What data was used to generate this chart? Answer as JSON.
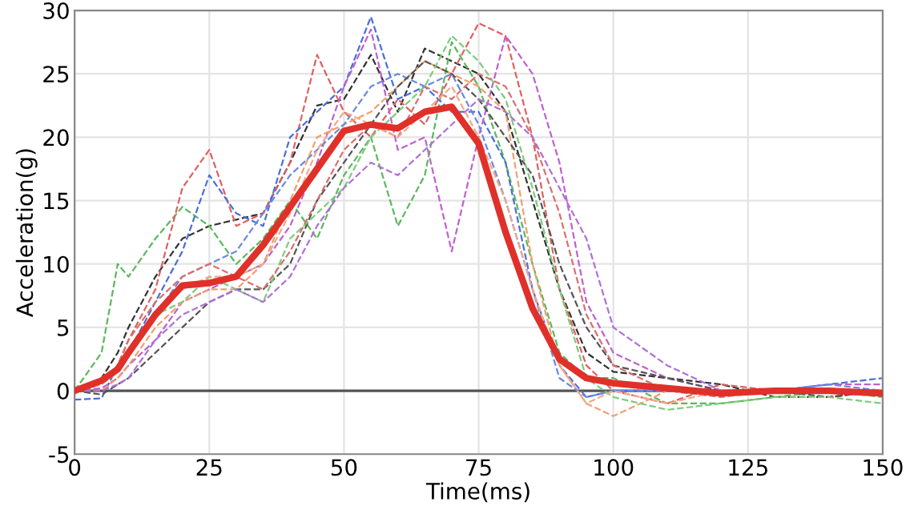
{
  "chart_data": {
    "type": "line",
    "xlabel": "Time(ms)",
    "ylabel": "Acceleration(g)",
    "x": [
      0,
      5,
      8,
      10,
      15,
      20,
      25,
      30,
      35,
      40,
      45,
      50,
      55,
      60,
      65,
      70,
      75,
      80,
      85,
      90,
      95,
      100,
      110,
      120,
      130,
      140,
      150
    ],
    "xlim": [
      0,
      150
    ],
    "xticks": [
      0,
      25,
      50,
      75,
      100,
      125,
      150
    ],
    "ylim": [
      -5,
      30
    ],
    "yticks": [
      -5,
      0,
      5,
      10,
      15,
      20,
      25,
      30
    ],
    "grid": true,
    "marker": "none",
    "ref_lines": [
      {
        "axis": "y",
        "value": 0,
        "color": "#555555",
        "line_style": "solid"
      }
    ],
    "series": [
      {
        "color": "#333333",
        "line_style": "dashed",
        "values": [
          0,
          1,
          3,
          5,
          9,
          12,
          13,
          13.5,
          14,
          18,
          22.5,
          23,
          26.5,
          22,
          27,
          26,
          25,
          22,
          15,
          8,
          3,
          1.5,
          1,
          0.5,
          -0.5,
          -0.5,
          0
        ]
      },
      {
        "color": "#5cb85c",
        "line_style": "dashed",
        "values": [
          0,
          3,
          10,
          9,
          12,
          14.5,
          13,
          10,
          12,
          15,
          12,
          17,
          20,
          13,
          17,
          27.5,
          24,
          18,
          10,
          3,
          1,
          1,
          -1,
          -1,
          -0.5,
          0,
          -0.5
        ]
      },
      {
        "color": "#e06060",
        "line_style": "dashed",
        "values": [
          0,
          0.5,
          2,
          4,
          8,
          16,
          19,
          13,
          14,
          18,
          26.5,
          22,
          20,
          23,
          21,
          25,
          29,
          28,
          20,
          8,
          2,
          0,
          -1,
          0.5,
          0,
          0,
          0
        ]
      },
      {
        "color": "#4a6fd8",
        "line_style": "dashed",
        "values": [
          -0.7,
          -0.6,
          2,
          3,
          7,
          11,
          17,
          14,
          13,
          20,
          22,
          24,
          29.5,
          23,
          24,
          22,
          22,
          18,
          8,
          2,
          -0.5,
          0,
          0,
          0,
          0,
          0.5,
          1
        ]
      },
      {
        "color": "#c060d0",
        "line_style": "dashed",
        "values": [
          0,
          0.2,
          1,
          2,
          4,
          7,
          8,
          9,
          10,
          13,
          18,
          24,
          28.5,
          19,
          20,
          11,
          20,
          28,
          25,
          18,
          7,
          3,
          1,
          0,
          0,
          0.5,
          0.5
        ]
      },
      {
        "color": "#f0a070",
        "line_style": "dashed",
        "values": [
          0,
          0,
          1,
          2,
          5,
          7,
          8,
          8,
          10,
          15,
          20,
          21,
          22,
          24,
          26,
          25,
          24,
          22,
          10,
          2,
          -1,
          -2,
          0,
          0,
          0,
          0,
          0
        ]
      },
      {
        "color": "#6a8ae0",
        "line_style": "dashed",
        "values": [
          0,
          0.5,
          1.5,
          3,
          6,
          9,
          10,
          11,
          14,
          17,
          19,
          21,
          24,
          25,
          24,
          25,
          21,
          15,
          8,
          1,
          -0.5,
          0,
          0,
          0,
          0,
          0.5,
          0
        ]
      },
      {
        "color": "#555555",
        "line_style": "dashed",
        "values": [
          0,
          -0.3,
          0.5,
          1,
          3,
          5,
          7,
          8,
          8,
          10,
          15,
          18,
          21,
          24,
          26,
          25,
          23,
          20,
          17,
          10,
          5,
          2,
          1,
          0,
          0,
          -0.5,
          0
        ]
      },
      {
        "color": "#7ccc7c",
        "line_style": "dashed",
        "values": [
          0,
          0.5,
          1.5,
          3,
          6,
          7,
          9,
          8,
          7,
          12,
          14,
          16,
          20,
          22,
          24,
          28,
          26,
          23,
          16,
          8,
          1,
          -0.5,
          -1.5,
          -1,
          -0.5,
          -0.5,
          -1
        ]
      },
      {
        "color": "#d87070",
        "line_style": "dashed",
        "values": [
          0,
          0.5,
          2,
          4,
          7,
          9,
          10,
          9,
          8,
          11,
          15,
          19,
          21,
          20,
          24,
          23,
          25,
          24,
          20,
          14,
          6,
          2,
          0,
          -0.5,
          0,
          0,
          0
        ]
      },
      {
        "color": "#b070d8",
        "line_style": "dashed",
        "values": [
          0,
          0,
          0.5,
          1,
          4,
          6,
          7,
          8,
          7,
          9,
          13,
          16,
          18,
          17,
          19,
          21,
          23,
          22,
          20,
          16,
          12,
          5,
          2,
          0,
          0,
          0,
          0
        ]
      },
      {
        "color": "#f4a888",
        "line_style": "dashed",
        "values": [
          0,
          0.5,
          1.5,
          3,
          6,
          8,
          9,
          9,
          10,
          14,
          19,
          22,
          21,
          20,
          22,
          24,
          20,
          15,
          8,
          2,
          -1,
          0,
          -1,
          0,
          0,
          0,
          0
        ]
      },
      {
        "color": "#e0302a",
        "line_style": "solid",
        "values": [
          0,
          0.8,
          1.7,
          3,
          6,
          8.3,
          8.5,
          9,
          11.5,
          14.5,
          17.5,
          20.5,
          21,
          20.7,
          22,
          22.4,
          19.5,
          12.5,
          6.5,
          2.5,
          1,
          0.6,
          0.2,
          -0.2,
          0,
          0,
          -0.2
        ]
      }
    ]
  }
}
